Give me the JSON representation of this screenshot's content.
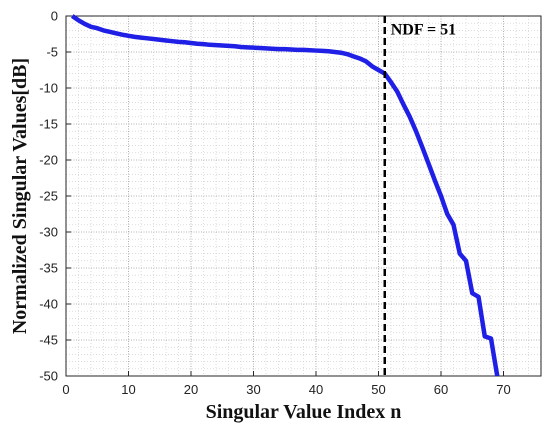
{
  "chart_data": {
    "type": "line",
    "title": "",
    "xlabel": "Singular Value Index n",
    "ylabel": "Normalized Singular Values[dB]",
    "xlim": [
      0,
      76
    ],
    "ylim": [
      -50,
      0
    ],
    "x_ticks": [
      0,
      10,
      20,
      30,
      40,
      50,
      60,
      70
    ],
    "y_ticks": [
      0,
      -5,
      -10,
      -15,
      -20,
      -25,
      -30,
      -35,
      -40,
      -45,
      -50
    ],
    "grid": "on",
    "legend": "none",
    "line_color": "#1f1fe6",
    "series": [
      {
        "x": [
          1,
          2,
          3,
          4,
          5,
          6,
          7,
          8,
          9,
          10,
          11,
          12,
          13,
          14,
          15,
          16,
          17,
          18,
          19,
          20,
          21,
          22,
          23,
          24,
          25,
          26,
          27,
          28,
          29,
          30,
          31,
          32,
          33,
          34,
          35,
          36,
          37,
          38,
          39,
          40,
          41,
          42,
          43,
          44,
          45,
          46,
          47,
          48,
          49,
          50,
          51,
          52,
          53,
          54,
          55,
          56,
          57,
          58,
          59,
          60,
          61,
          62,
          63,
          64,
          65,
          66,
          67,
          68,
          69
        ],
        "values": [
          0.0,
          -0.6,
          -1.1,
          -1.5,
          -1.7,
          -2.0,
          -2.2,
          -2.4,
          -2.6,
          -2.75,
          -2.9,
          -3.0,
          -3.1,
          -3.2,
          -3.3,
          -3.4,
          -3.5,
          -3.6,
          -3.65,
          -3.75,
          -3.85,
          -3.9,
          -4.0,
          -4.05,
          -4.1,
          -4.15,
          -4.2,
          -4.3,
          -4.35,
          -4.4,
          -4.45,
          -4.5,
          -4.55,
          -4.6,
          -4.6,
          -4.65,
          -4.7,
          -4.7,
          -4.75,
          -4.8,
          -4.85,
          -4.9,
          -5.0,
          -5.1,
          -5.3,
          -5.6,
          -5.9,
          -6.3,
          -7.0,
          -7.5,
          -8.0,
          -9.2,
          -10.5,
          -12.3,
          -14.0,
          -16.0,
          -18.2,
          -20.5,
          -22.8,
          -25.0,
          -27.5,
          -29.0,
          -33.0,
          -34.0,
          -38.5,
          -39.0,
          -44.5,
          -44.8,
          -50.0
        ]
      }
    ],
    "markers": [
      {
        "x": 51,
        "style": "dashed",
        "color": "#000000"
      }
    ],
    "annotations": [
      {
        "text": "NDF = 51",
        "x": 51,
        "y": -3
      }
    ]
  }
}
